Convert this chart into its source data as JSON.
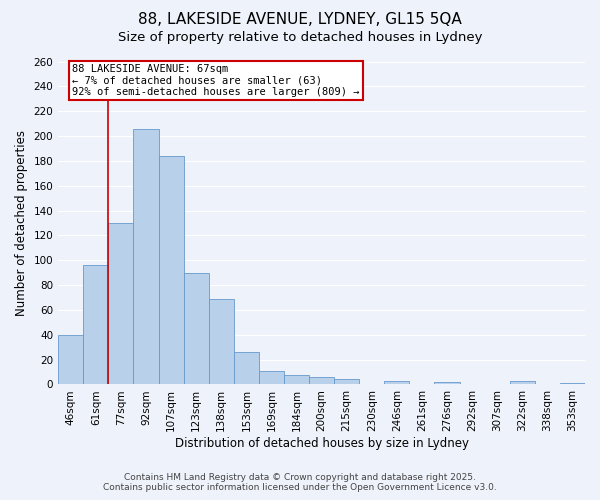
{
  "title": "88, LAKESIDE AVENUE, LYDNEY, GL15 5QA",
  "subtitle": "Size of property relative to detached houses in Lydney",
  "xlabel": "Distribution of detached houses by size in Lydney",
  "ylabel": "Number of detached properties",
  "categories": [
    "46sqm",
    "61sqm",
    "77sqm",
    "92sqm",
    "107sqm",
    "123sqm",
    "138sqm",
    "153sqm",
    "169sqm",
    "184sqm",
    "200sqm",
    "215sqm",
    "230sqm",
    "246sqm",
    "261sqm",
    "276sqm",
    "292sqm",
    "307sqm",
    "322sqm",
    "338sqm",
    "353sqm"
  ],
  "values": [
    40,
    96,
    130,
    206,
    184,
    90,
    69,
    26,
    11,
    8,
    6,
    4,
    0,
    3,
    0,
    2,
    0,
    0,
    3,
    0,
    1
  ],
  "bar_color": "#b8d0ea",
  "bar_edge_color": "#6699cc",
  "ylim": [
    0,
    260
  ],
  "yticks": [
    0,
    20,
    40,
    60,
    80,
    100,
    120,
    140,
    160,
    180,
    200,
    220,
    240,
    260
  ],
  "property_line_x": 1.5,
  "property_line_color": "#cc0000",
  "annotation_title": "88 LAKESIDE AVENUE: 67sqm",
  "annotation_line1": "← 7% of detached houses are smaller (63)",
  "annotation_line2": "92% of semi-detached houses are larger (809) →",
  "annotation_box_color": "#cc0000",
  "footer_line1": "Contains HM Land Registry data © Crown copyright and database right 2025.",
  "footer_line2": "Contains public sector information licensed under the Open Government Licence v3.0.",
  "background_color": "#eef2fa",
  "grid_color": "#ffffff",
  "title_fontsize": 11,
  "subtitle_fontsize": 9.5,
  "axis_label_fontsize": 8.5,
  "tick_fontsize": 7.5,
  "annotation_fontsize": 7.5,
  "footer_fontsize": 6.5
}
